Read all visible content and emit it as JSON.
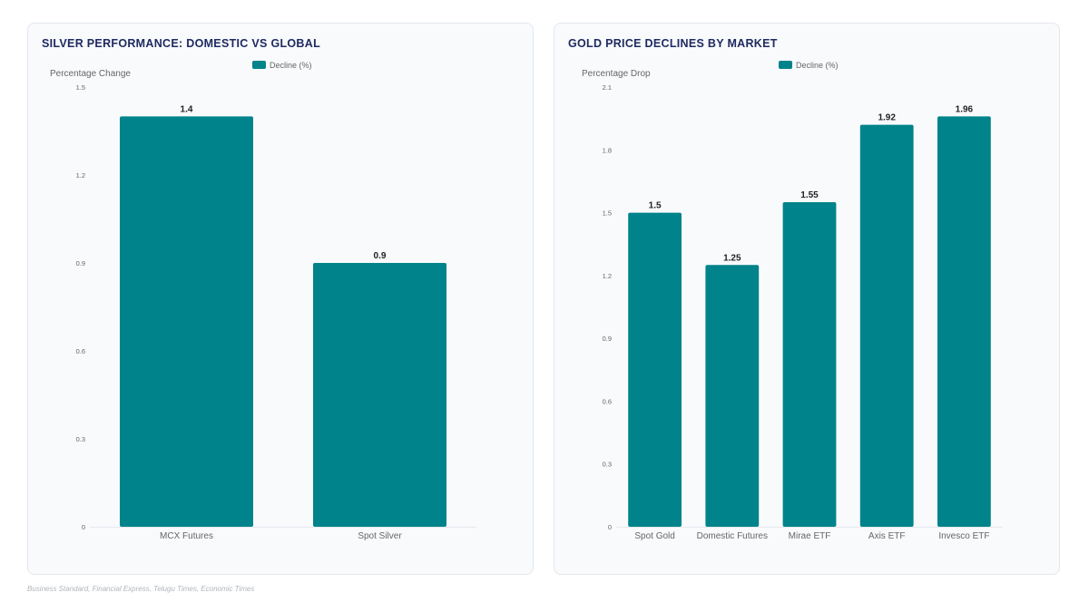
{
  "charts": {
    "left": {
      "title": "SILVER PERFORMANCE: DOMESTIC VS GLOBAL"
    },
    "right": {
      "title": "GOLD PRICE DECLINES BY MARKET"
    }
  },
  "source": "Business Standard, Financial Express, Telugu Times, Economic Times",
  "colors": {
    "bar": "#00838a",
    "axis_text": "#666666",
    "label_text": "#222222"
  },
  "chart_data": [
    {
      "type": "bar",
      "title": "SILVER PERFORMANCE: DOMESTIC VS GLOBAL",
      "ylabel": "Percentage Change",
      "xlabel": "",
      "categories": [
        "MCX Futures",
        "Spot Silver"
      ],
      "series": [
        {
          "name": "Decline (%)",
          "values": [
            1.4,
            0.9
          ]
        }
      ],
      "ylim": [
        0,
        1.5
      ],
      "yticks": [
        "0",
        "0.3",
        "0.6",
        "0.9",
        "1.2",
        "1.5"
      ],
      "grid": false,
      "legend": "top-center"
    },
    {
      "type": "bar",
      "title": "GOLD PRICE DECLINES BY MARKET",
      "ylabel": "Percentage Drop",
      "xlabel": "",
      "categories": [
        "Spot Gold",
        "Domestic Futures",
        "Mirae ETF",
        "Axis ETF",
        "Invesco ETF"
      ],
      "series": [
        {
          "name": "Decline (%)",
          "values": [
            1.5,
            1.25,
            1.55,
            1.92,
            1.96
          ]
        }
      ],
      "ylim": [
        0,
        2.1
      ],
      "yticks": [
        "0",
        "0.3",
        "0.6",
        "0.9",
        "1.2",
        "1.5",
        "1.8",
        "2.1"
      ],
      "grid": false,
      "legend": "top-center"
    }
  ]
}
